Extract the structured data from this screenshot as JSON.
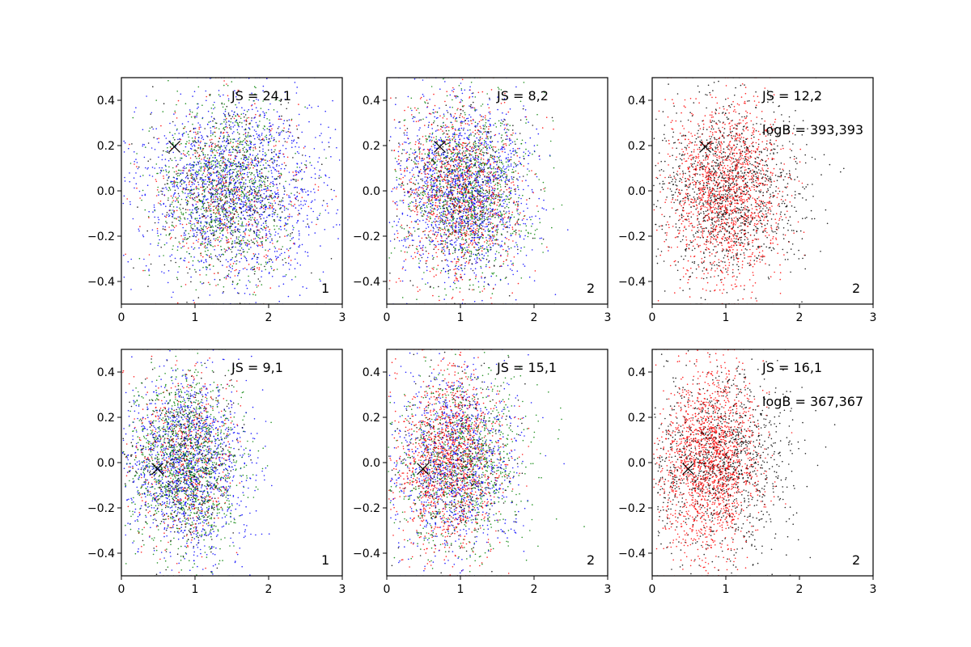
{
  "chart_data": [
    {
      "type": "scatter",
      "panel": 1,
      "x_ticks": [
        "0",
        "1",
        "2",
        "3"
      ],
      "y_ticks": [
        "−0.4",
        "−0.2",
        "0.0",
        "0.2",
        "0.4"
      ],
      "xlim": [
        0,
        3
      ],
      "ylim": [
        -0.5,
        0.5
      ],
      "annotations": {
        "js": "JS = 24,1",
        "logb": "",
        "index": "1"
      },
      "marker": {
        "x": 0.72,
        "y": 0.195
      },
      "series": [
        {
          "color": "#0000ff",
          "count": 1600,
          "x_mean": 1.55,
          "x_sd": 0.62,
          "y_mean": 0.0,
          "y_sd": 0.2
        },
        {
          "color": "#008000",
          "count": 1000,
          "x_mean": 1.4,
          "x_sd": 0.45,
          "y_mean": 0.0,
          "y_sd": 0.2
        },
        {
          "color": "#ff0000",
          "count": 500,
          "x_mean": 1.5,
          "x_sd": 0.5,
          "y_mean": 0.0,
          "y_sd": 0.2
        },
        {
          "color": "#000000",
          "count": 500,
          "x_mean": 1.45,
          "x_sd": 0.5,
          "y_mean": 0.0,
          "y_sd": 0.2
        }
      ],
      "grid": false
    },
    {
      "type": "scatter",
      "panel": 2,
      "x_ticks": [
        "0",
        "1",
        "2",
        "3"
      ],
      "y_ticks": [
        "−0.4",
        "−0.2",
        "0.0",
        "0.2",
        "0.4"
      ],
      "xlim": [
        0,
        3
      ],
      "ylim": [
        -0.5,
        0.5
      ],
      "annotations": {
        "js": "JS = 8,2",
        "logb": "",
        "index": "2"
      },
      "marker": {
        "x": 0.72,
        "y": 0.195
      },
      "series": [
        {
          "color": "#0000ff",
          "count": 1400,
          "x_mean": 1.05,
          "x_sd": 0.45,
          "y_mean": 0.0,
          "y_sd": 0.2
        },
        {
          "color": "#008000",
          "count": 1000,
          "x_mean": 1.1,
          "x_sd": 0.42,
          "y_mean": 0.0,
          "y_sd": 0.2
        },
        {
          "color": "#ff0000",
          "count": 1000,
          "x_mean": 1.0,
          "x_sd": 0.4,
          "y_mean": 0.0,
          "y_sd": 0.2
        },
        {
          "color": "#000000",
          "count": 500,
          "x_mean": 1.0,
          "x_sd": 0.4,
          "y_mean": 0.0,
          "y_sd": 0.2
        }
      ],
      "grid": false
    },
    {
      "type": "scatter",
      "panel": 3,
      "x_ticks": [
        "0",
        "1",
        "2",
        "3"
      ],
      "y_ticks": [
        "−0.4",
        "−0.2",
        "0.0",
        "0.2",
        "0.4"
      ],
      "xlim": [
        0,
        3
      ],
      "ylim": [
        -0.5,
        0.5
      ],
      "annotations": {
        "js": "JS = 12,2",
        "logb": "logB = 393,393",
        "index": "2"
      },
      "marker": {
        "x": 0.72,
        "y": 0.195
      },
      "series": [
        {
          "color": "#ff0000",
          "count": 1500,
          "x_mean": 1.0,
          "x_sd": 0.38,
          "y_mean": 0.0,
          "y_sd": 0.2
        },
        {
          "color": "#000000",
          "count": 1300,
          "x_mean": 1.05,
          "x_sd": 0.5,
          "y_mean": 0.0,
          "y_sd": 0.2
        }
      ],
      "grid": false
    },
    {
      "type": "scatter",
      "panel": 4,
      "x_ticks": [
        "0",
        "1",
        "2",
        "3"
      ],
      "y_ticks": [
        "−0.4",
        "−0.2",
        "0.0",
        "0.2",
        "0.4"
      ],
      "xlim": [
        0,
        3
      ],
      "ylim": [
        -0.5,
        0.5
      ],
      "annotations": {
        "js": "JS = 9,1",
        "logb": "",
        "index": "1"
      },
      "marker": {
        "x": 0.49,
        "y": -0.028
      },
      "series": [
        {
          "color": "#0000ff",
          "count": 1300,
          "x_mean": 0.9,
          "x_sd": 0.42,
          "y_mean": 0.0,
          "y_sd": 0.2
        },
        {
          "color": "#008000",
          "count": 1200,
          "x_mean": 0.88,
          "x_sd": 0.38,
          "y_mean": 0.0,
          "y_sd": 0.2
        },
        {
          "color": "#ff0000",
          "count": 500,
          "x_mean": 0.85,
          "x_sd": 0.35,
          "y_mean": 0.0,
          "y_sd": 0.2
        },
        {
          "color": "#000000",
          "count": 500,
          "x_mean": 0.85,
          "x_sd": 0.35,
          "y_mean": 0.0,
          "y_sd": 0.2
        }
      ],
      "grid": false
    },
    {
      "type": "scatter",
      "panel": 5,
      "x_ticks": [
        "0",
        "1",
        "2",
        "3"
      ],
      "y_ticks": [
        "−0.4",
        "−0.2",
        "0.0",
        "0.2",
        "0.4"
      ],
      "xlim": [
        0,
        3
      ],
      "ylim": [
        -0.5,
        0.5
      ],
      "annotations": {
        "js": "JS = 15,1",
        "logb": "",
        "index": "2"
      },
      "marker": {
        "x": 0.49,
        "y": -0.028
      },
      "series": [
        {
          "color": "#0000ff",
          "count": 1000,
          "x_mean": 0.95,
          "x_sd": 0.42,
          "y_mean": 0.0,
          "y_sd": 0.2
        },
        {
          "color": "#008000",
          "count": 900,
          "x_mean": 1.05,
          "x_sd": 0.45,
          "y_mean": 0.0,
          "y_sd": 0.2
        },
        {
          "color": "#ff0000",
          "count": 1300,
          "x_mean": 0.85,
          "x_sd": 0.35,
          "y_mean": 0.0,
          "y_sd": 0.2
        },
        {
          "color": "#000000",
          "count": 400,
          "x_mean": 0.9,
          "x_sd": 0.38,
          "y_mean": 0.0,
          "y_sd": 0.2
        }
      ],
      "grid": false
    },
    {
      "type": "scatter",
      "panel": 6,
      "x_ticks": [
        "0",
        "1",
        "2",
        "3"
      ],
      "y_ticks": [
        "−0.4",
        "−0.2",
        "0.0",
        "0.2",
        "0.4"
      ],
      "xlim": [
        0,
        3
      ],
      "ylim": [
        -0.5,
        0.5
      ],
      "annotations": {
        "js": "JS = 16,1",
        "logb": "logB = 367,367",
        "index": "2"
      },
      "marker": {
        "x": 0.49,
        "y": -0.028
      },
      "series": [
        {
          "color": "#ff0000",
          "count": 1700,
          "x_mean": 0.78,
          "x_sd": 0.32,
          "y_mean": 0.0,
          "y_sd": 0.2
        },
        {
          "color": "#000000",
          "count": 1200,
          "x_mean": 0.95,
          "x_sd": 0.48,
          "y_mean": 0.0,
          "y_sd": 0.2
        }
      ],
      "grid": false
    }
  ]
}
